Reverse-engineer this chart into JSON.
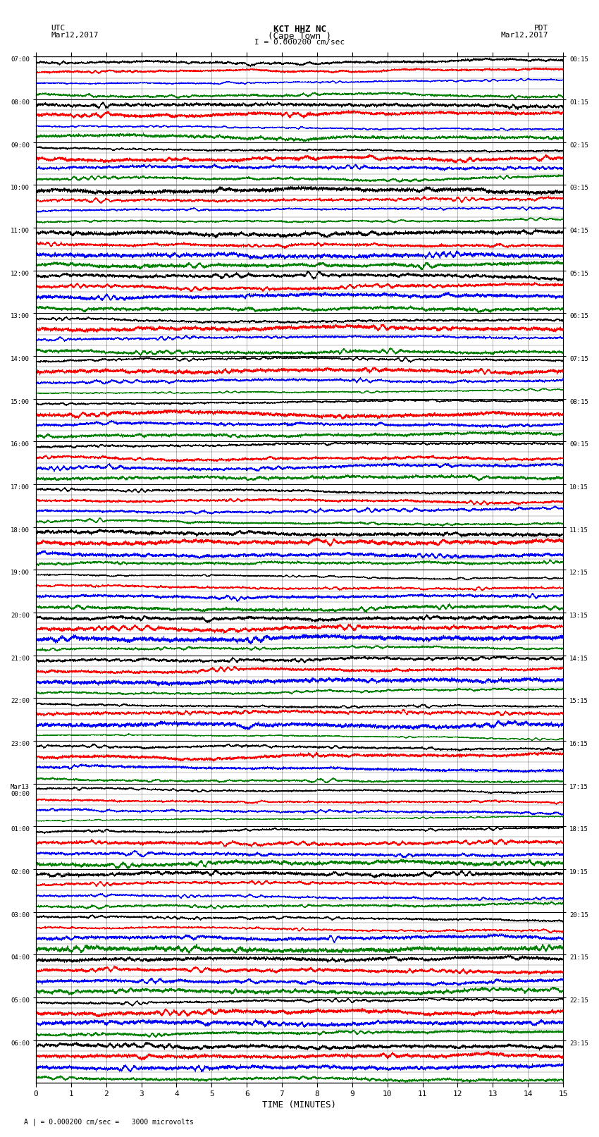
{
  "title_line1": "KCT HHZ NC",
  "title_line2": "(Cape Town )",
  "scale_label": "I = 0.000200 cm/sec",
  "left_header_line1": "UTC",
  "left_header_line2": "Mar12,2017",
  "right_header_line1": "PDT",
  "right_header_line2": "Mar12,2017",
  "bottom_note": "A | = 0.000200 cm/sec =   3000 microvolts",
  "xlabel": "TIME (MINUTES)",
  "left_times": [
    "07:00",
    "08:00",
    "09:00",
    "10:00",
    "11:00",
    "12:00",
    "13:00",
    "14:00",
    "15:00",
    "16:00",
    "17:00",
    "18:00",
    "19:00",
    "20:00",
    "21:00",
    "22:00",
    "23:00",
    "Mar13\n00:00",
    "01:00",
    "02:00",
    "03:00",
    "04:00",
    "05:00",
    "06:00"
  ],
  "right_times": [
    "00:15",
    "01:15",
    "02:15",
    "03:15",
    "04:15",
    "05:15",
    "06:15",
    "07:15",
    "08:15",
    "09:15",
    "10:15",
    "11:15",
    "12:15",
    "13:15",
    "14:15",
    "15:15",
    "16:15",
    "17:15",
    "18:15",
    "19:15",
    "20:15",
    "21:15",
    "22:15",
    "23:15"
  ],
  "xticks": [
    0,
    1,
    2,
    3,
    4,
    5,
    6,
    7,
    8,
    9,
    10,
    11,
    12,
    13,
    14,
    15
  ],
  "num_rows": 24,
  "minutes_per_row": 15,
  "traces_per_row": 4,
  "colors": [
    "black",
    "red",
    "blue",
    "green"
  ],
  "fig_width": 8.5,
  "fig_height": 16.13,
  "n_points": 9000
}
